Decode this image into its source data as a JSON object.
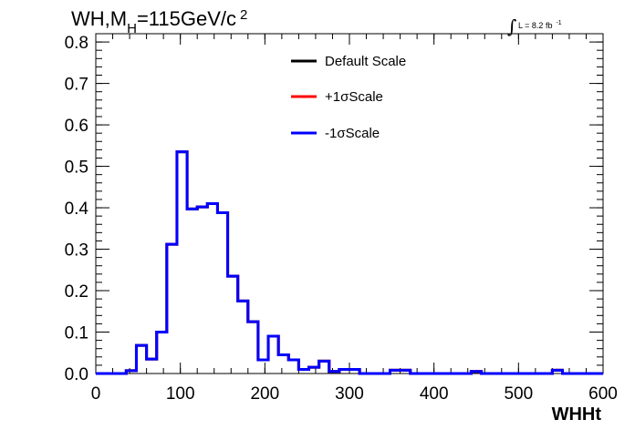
{
  "title": {
    "main": "WH,M",
    "sub": "H",
    "rest": "=115GeV/c",
    "sup": "2"
  },
  "lumi": {
    "integral": "∫",
    "text": "L = 8.2 fb",
    "sup": "-1"
  },
  "chart_data": {
    "type": "line",
    "xlabel": "WHHt",
    "ylabel": "",
    "xlim": [
      0,
      600
    ],
    "ylim": [
      0,
      0.82
    ],
    "x_ticks": [
      0,
      100,
      200,
      300,
      400,
      500,
      600
    ],
    "x_tick_labels": [
      "0",
      "100",
      "200",
      "300",
      "400",
      "500",
      "600"
    ],
    "y_ticks": [
      0,
      0.1,
      0.2,
      0.3,
      0.4,
      0.5,
      0.6,
      0.7,
      0.8
    ],
    "y_tick_labels": [
      "0.0",
      "0.1",
      "0.2",
      "0.3",
      "0.4",
      "0.5",
      "0.6",
      "0.7",
      "0.8"
    ],
    "grid": false,
    "legend_placement": "top-center",
    "bin_edges": [
      0,
      12,
      24,
      36,
      48,
      60,
      72,
      84,
      96,
      108,
      120,
      132,
      144,
      156,
      168,
      180,
      192,
      204,
      216,
      228,
      240,
      252,
      264,
      276,
      288,
      300,
      312,
      324,
      336,
      348,
      360,
      372,
      384,
      396,
      408,
      420,
      432,
      444,
      456,
      468,
      480,
      492,
      504,
      516,
      528,
      540,
      552,
      564,
      576,
      588,
      600
    ],
    "series": [
      {
        "name": "Default Scale",
        "color": "#000000",
        "values": [
          0,
          0,
          0,
          0.007,
          0.068,
          0.035,
          0.1,
          0.312,
          0.535,
          0.397,
          0.402,
          0.41,
          0.388,
          0.235,
          0.175,
          0.125,
          0.033,
          0.09,
          0.045,
          0.033,
          0.01,
          0.015,
          0.03,
          0.005,
          0.01,
          0.01,
          0,
          0,
          0,
          0.008,
          0.008,
          0,
          0,
          0,
          0,
          0,
          0,
          0.005,
          0,
          0,
          0,
          0,
          0,
          0,
          0,
          0.008,
          0,
          0,
          0,
          0
        ]
      },
      {
        "name": "+1σScale",
        "color": "#ff0000",
        "values": [
          0,
          0,
          0,
          0.007,
          0.068,
          0.035,
          0.1,
          0.312,
          0.535,
          0.397,
          0.402,
          0.41,
          0.388,
          0.235,
          0.175,
          0.125,
          0.033,
          0.09,
          0.045,
          0.033,
          0.01,
          0.015,
          0.03,
          0.005,
          0.01,
          0.01,
          0,
          0,
          0,
          0.008,
          0.008,
          0,
          0,
          0,
          0,
          0,
          0,
          0.005,
          0,
          0,
          0,
          0,
          0,
          0,
          0,
          0.008,
          0,
          0,
          0,
          0
        ]
      },
      {
        "name": "-1σScale",
        "color": "#0000ff",
        "values": [
          0,
          0,
          0,
          0.007,
          0.068,
          0.035,
          0.1,
          0.312,
          0.535,
          0.397,
          0.402,
          0.41,
          0.388,
          0.235,
          0.175,
          0.125,
          0.033,
          0.09,
          0.045,
          0.033,
          0.01,
          0.015,
          0.03,
          0.005,
          0.01,
          0.01,
          0,
          0,
          0,
          0.008,
          0.008,
          0,
          0,
          0,
          0,
          0,
          0,
          0.005,
          0,
          0,
          0,
          0,
          0,
          0,
          0,
          0.008,
          0,
          0,
          0,
          0
        ]
      }
    ]
  }
}
